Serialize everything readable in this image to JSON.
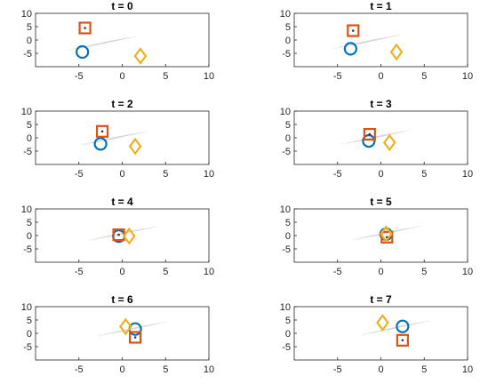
{
  "colors": {
    "circle": "#0072BD",
    "square": "#D95319",
    "diamond": "#EDB120",
    "axis": "#262626",
    "streak": "#bfbfbf"
  },
  "chart_data": [
    {
      "type": "scatter",
      "title": "t = 0",
      "xlim": [
        -10,
        10
      ],
      "ylim": [
        -10,
        10
      ],
      "xticks": [
        "-5",
        "0",
        "5",
        "10"
      ],
      "yticks": [
        "10",
        "5",
        "0",
        "-5"
      ],
      "series": [
        {
          "marker": "circle",
          "x": [
            -4.6
          ],
          "y": [
            -4.5
          ]
        },
        {
          "marker": "square",
          "x": [
            -4.3
          ],
          "y": [
            4.5
          ]
        },
        {
          "marker": "diamond",
          "x": [
            2.1
          ],
          "y": [
            -6.0
          ]
        }
      ]
    },
    {
      "type": "scatter",
      "title": "t = 1",
      "xlim": [
        -10,
        10
      ],
      "ylim": [
        -10,
        10
      ],
      "xticks": [
        "-5",
        "0",
        "5",
        "10"
      ],
      "yticks": [
        "10",
        "5",
        "0",
        "-5"
      ],
      "series": [
        {
          "marker": "circle",
          "x": [
            -3.5
          ],
          "y": [
            -3.3
          ]
        },
        {
          "marker": "square",
          "x": [
            -3.2
          ],
          "y": [
            3.5
          ]
        },
        {
          "marker": "diamond",
          "x": [
            1.8
          ],
          "y": [
            -4.5
          ]
        }
      ]
    },
    {
      "type": "scatter",
      "title": "t = 2",
      "xlim": [
        -10,
        10
      ],
      "ylim": [
        -10,
        10
      ],
      "xticks": [
        "-5",
        "0",
        "5",
        "10"
      ],
      "yticks": [
        "10",
        "5",
        "0",
        "-5"
      ],
      "series": [
        {
          "marker": "circle",
          "x": [
            -2.5
          ],
          "y": [
            -2.3
          ]
        },
        {
          "marker": "square",
          "x": [
            -2.3
          ],
          "y": [
            2.4
          ]
        },
        {
          "marker": "diamond",
          "x": [
            1.5
          ],
          "y": [
            -3.2
          ]
        }
      ]
    },
    {
      "type": "scatter",
      "title": "t = 3",
      "xlim": [
        -10,
        10
      ],
      "ylim": [
        -10,
        10
      ],
      "xticks": [
        "-5",
        "0",
        "5",
        "10"
      ],
      "yticks": [
        "10",
        "5",
        "0",
        "-5"
      ],
      "series": [
        {
          "marker": "circle",
          "x": [
            -1.4
          ],
          "y": [
            -1.2
          ]
        },
        {
          "marker": "square",
          "x": [
            -1.3
          ],
          "y": [
            1.3
          ]
        },
        {
          "marker": "diamond",
          "x": [
            1.0
          ],
          "y": [
            -1.8
          ]
        }
      ]
    },
    {
      "type": "scatter",
      "title": "t = 4",
      "xlim": [
        -10,
        10
      ],
      "ylim": [
        -10,
        10
      ],
      "xticks": [
        "-5",
        "0",
        "5",
        "10"
      ],
      "yticks": [
        "10",
        "5",
        "0",
        "-5"
      ],
      "series": [
        {
          "marker": "circle",
          "x": [
            -0.4
          ],
          "y": [
            -0.2
          ]
        },
        {
          "marker": "square",
          "x": [
            -0.4
          ],
          "y": [
            0.3
          ]
        },
        {
          "marker": "diamond",
          "x": [
            0.8
          ],
          "y": [
            -0.2
          ]
        }
      ]
    },
    {
      "type": "scatter",
      "title": "t = 5",
      "xlim": [
        -10,
        10
      ],
      "ylim": [
        -10,
        10
      ],
      "xticks": [
        "-5",
        "0",
        "5",
        "10"
      ],
      "yticks": [
        "10",
        "5",
        "0",
        "-5"
      ],
      "series": [
        {
          "marker": "circle",
          "x": [
            0.6
          ],
          "y": [
            0.5
          ]
        },
        {
          "marker": "square",
          "x": [
            0.7
          ],
          "y": [
            -0.6
          ]
        },
        {
          "marker": "diamond",
          "x": [
            0.6
          ],
          "y": [
            0.6
          ]
        }
      ]
    },
    {
      "type": "scatter",
      "title": "t = 6",
      "xlim": [
        -10,
        10
      ],
      "ylim": [
        -10,
        10
      ],
      "xticks": [
        "-5",
        "0",
        "5",
        "10"
      ],
      "yticks": [
        "10",
        "5",
        "0",
        "-5"
      ],
      "series": [
        {
          "marker": "circle",
          "x": [
            1.5
          ],
          "y": [
            1.6
          ]
        },
        {
          "marker": "square",
          "x": [
            1.5
          ],
          "y": [
            -1.5
          ]
        },
        {
          "marker": "diamond",
          "x": [
            0.4
          ],
          "y": [
            2.5
          ]
        }
      ]
    },
    {
      "type": "scatter",
      "title": "t = 7",
      "xlim": [
        -10,
        10
      ],
      "ylim": [
        -10,
        10
      ],
      "xticks": [
        "-5",
        "0",
        "5",
        "10"
      ],
      "yticks": [
        "10",
        "5",
        "0",
        "-5"
      ],
      "series": [
        {
          "marker": "circle",
          "x": [
            2.5
          ],
          "y": [
            2.6
          ]
        },
        {
          "marker": "square",
          "x": [
            2.5
          ],
          "y": [
            -2.6
          ]
        },
        {
          "marker": "diamond",
          "x": [
            0.2
          ],
          "y": [
            4.0
          ]
        }
      ]
    }
  ]
}
